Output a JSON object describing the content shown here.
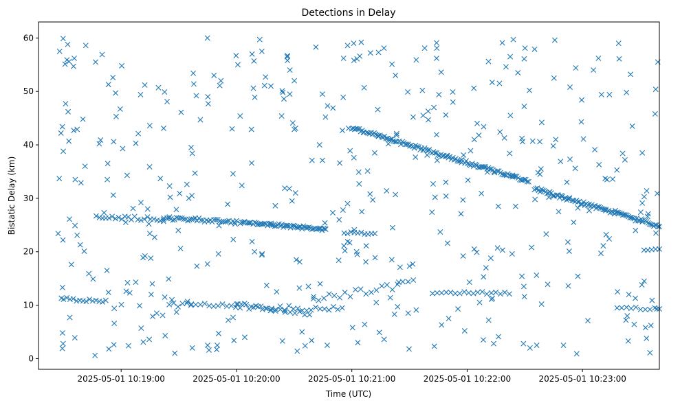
{
  "chart_data": {
    "type": "scatter",
    "title": "Detections in Delay",
    "xlabel": "Time (UTC)",
    "ylabel": "Bistatic Delay (km)",
    "marker": "x",
    "color": "#1f77b4",
    "grid": false,
    "legend": "none",
    "xlim": [
      "2025-05-01 10:18:17",
      "2025-05-01 10:23:40"
    ],
    "ylim": [
      -2,
      63
    ],
    "xticks": [
      "2025-05-01 10:19:00",
      "2025-05-01 10:20:00",
      "2025-05-01 10:21:00",
      "2025-05-01 10:22:00",
      "2025-05-01 10:23:00"
    ],
    "yticks": [
      "0",
      "10",
      "20",
      "30",
      "40",
      "50",
      "60"
    ],
    "points": []
  }
}
